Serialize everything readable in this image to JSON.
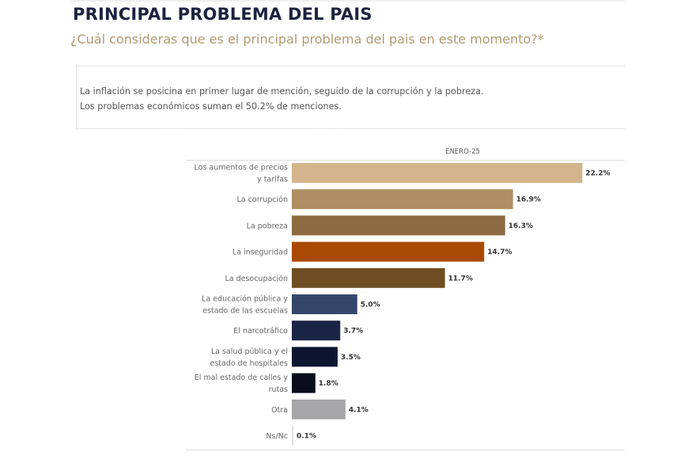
{
  "header": {
    "title": "PRINCIPAL PROBLEMA DEL PAIS",
    "subtitle": "¿Cuál consideras que es el principal problema del pais en este momento?*"
  },
  "note": {
    "line1": "La inflación se posicina en primer lugar de mención, seguido de la corrupción y la pobreza.",
    "line2": "Los problemas económicos suman el 50.2% de menciones."
  },
  "chart_data": {
    "type": "bar",
    "orientation": "horizontal",
    "series_label": "ENERO-25",
    "categories": [
      [
        "Los aumentos de precios",
        "y tarifas"
      ],
      [
        "La corrupción"
      ],
      [
        "La pobreza"
      ],
      [
        "La inseguridad"
      ],
      [
        "La desocupación"
      ],
      [
        "La educación pública y",
        "estado de las escuelas"
      ],
      [
        "El narcotráfico"
      ],
      [
        "La salud pública y el",
        "estado de hospitales"
      ],
      [
        "El mal estado de calles y",
        "rutas"
      ],
      [
        "Otra"
      ],
      [
        "Ns/Nc"
      ]
    ],
    "values": [
      22.2,
      16.9,
      16.3,
      14.7,
      11.7,
      5.0,
      3.7,
      3.5,
      1.8,
      4.1,
      0.1
    ],
    "value_labels": [
      "22.2%",
      "16.9%",
      "16.3%",
      "14.7%",
      "11.7%",
      "5.0%",
      "3.7%",
      "3.5%",
      "1.8%",
      "4.1%",
      "0.1%"
    ],
    "colors": [
      "#D4B48C",
      "#B08D62",
      "#8C6C40",
      "#A84A04",
      "#6E4E22",
      "#33466A",
      "#1A2444",
      "#0E1530",
      "#090D1C",
      "#A5A5A7",
      "#E0E0E0"
    ],
    "grid": false,
    "legend": "none"
  }
}
